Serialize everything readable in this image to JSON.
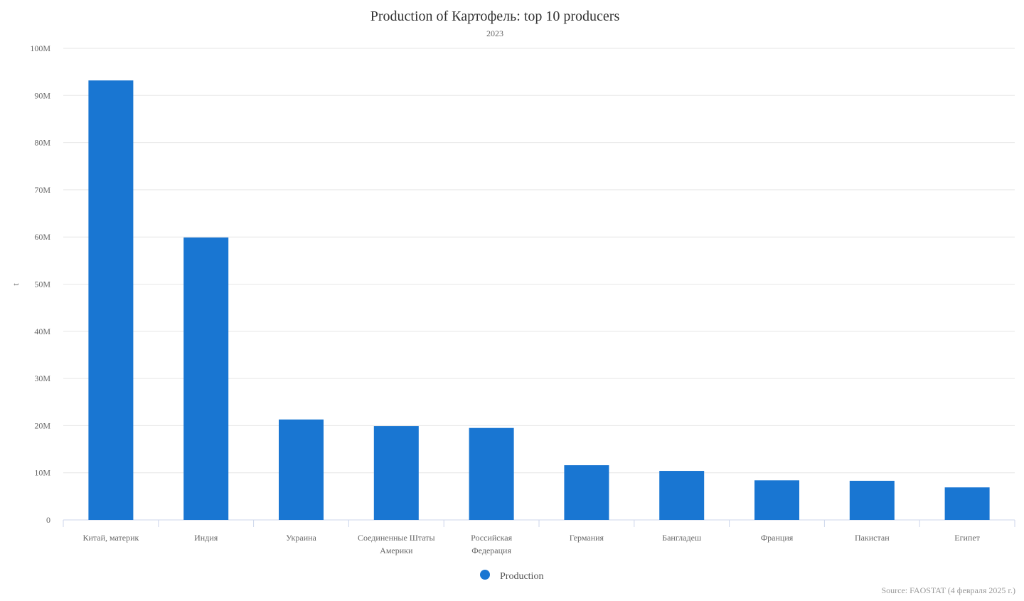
{
  "chart_data": {
    "type": "bar",
    "title": "Production of Картофель: top 10 producers",
    "subtitle": "2023",
    "xlabel": "",
    "ylabel": "t",
    "ylim": [
      0,
      100000000
    ],
    "yticks": [
      {
        "value": 0,
        "label": "0"
      },
      {
        "value": 10000000,
        "label": "10M"
      },
      {
        "value": 20000000,
        "label": "20M"
      },
      {
        "value": 30000000,
        "label": "30M"
      },
      {
        "value": 40000000,
        "label": "40M"
      },
      {
        "value": 50000000,
        "label": "50M"
      },
      {
        "value": 60000000,
        "label": "60M"
      },
      {
        "value": 70000000,
        "label": "70M"
      },
      {
        "value": 80000000,
        "label": "80M"
      },
      {
        "value": 90000000,
        "label": "90M"
      },
      {
        "value": 100000000,
        "label": "100M"
      }
    ],
    "categories": [
      [
        "Китай, материк"
      ],
      [
        "Индия"
      ],
      [
        "Украина"
      ],
      [
        "Соединенные Штаты",
        "Америки"
      ],
      [
        "Российская",
        "Федерация"
      ],
      [
        "Германия"
      ],
      [
        "Бангладеш"
      ],
      [
        "Франция"
      ],
      [
        "Пакистан"
      ],
      [
        "Египет"
      ]
    ],
    "series": [
      {
        "name": "Production",
        "color": "#1976d2",
        "values": [
          93200000,
          59900000,
          21300000,
          19900000,
          19500000,
          11600000,
          10400000,
          8400000,
          8300000,
          6900000
        ]
      }
    ],
    "grid": true,
    "legend": "bottom-center",
    "source": "Source: FAOSTAT (4 февраля 2025 г.)"
  }
}
